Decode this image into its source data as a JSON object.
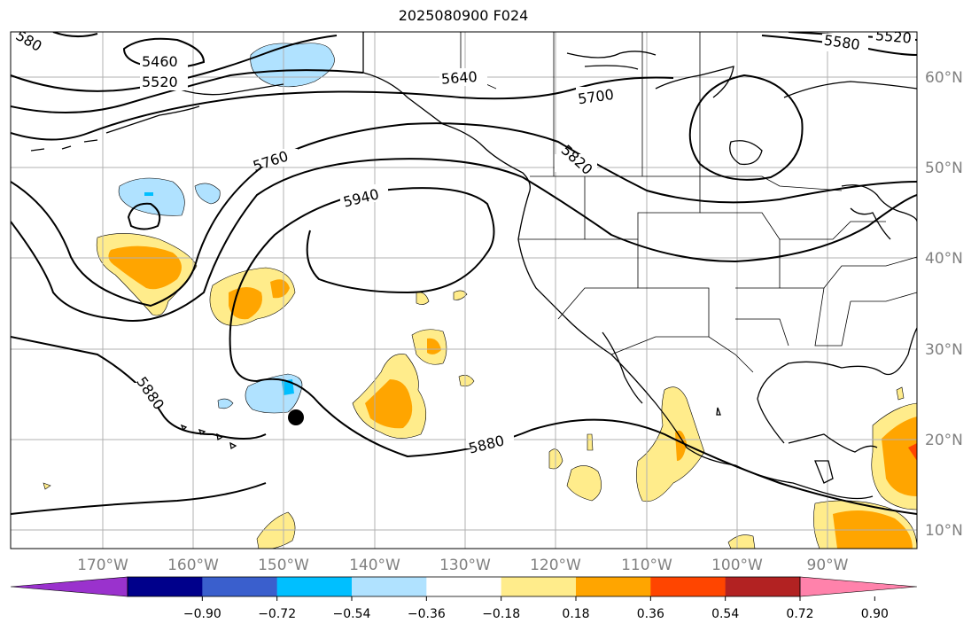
{
  "title": "2025080900 F024",
  "lon_ticks": [
    "170°W",
    "160°W",
    "150°W",
    "140°W",
    "130°W",
    "120°W",
    "110°W",
    "100°W",
    "90°W"
  ],
  "lat_ticks": [
    "60°N",
    "50°N",
    "40°N",
    "30°N",
    "20°N",
    "10°N"
  ],
  "contour_labels": [
    "5460",
    "5520",
    "5580",
    "5520",
    "5640",
    "5700",
    "5760",
    "5820",
    "5940",
    "5880",
    "5880",
    "580"
  ],
  "colorbar": {
    "ticks": [
      "−0.90",
      "−0.72",
      "−0.54",
      "−0.36",
      "−0.18",
      "0.18",
      "0.36",
      "0.54",
      "0.72",
      "0.90"
    ],
    "colors": [
      "#9a32cd",
      "#00008b",
      "#3a5fcd",
      "#00bfff",
      "#b0e2ff",
      "#ffffff",
      "#ffec8b",
      "#ffa500",
      "#ff4500",
      "#b22222",
      "#ff82ab"
    ]
  },
  "marker": {
    "label": "",
    "lon": -149.8,
    "lat": 22.5
  }
}
